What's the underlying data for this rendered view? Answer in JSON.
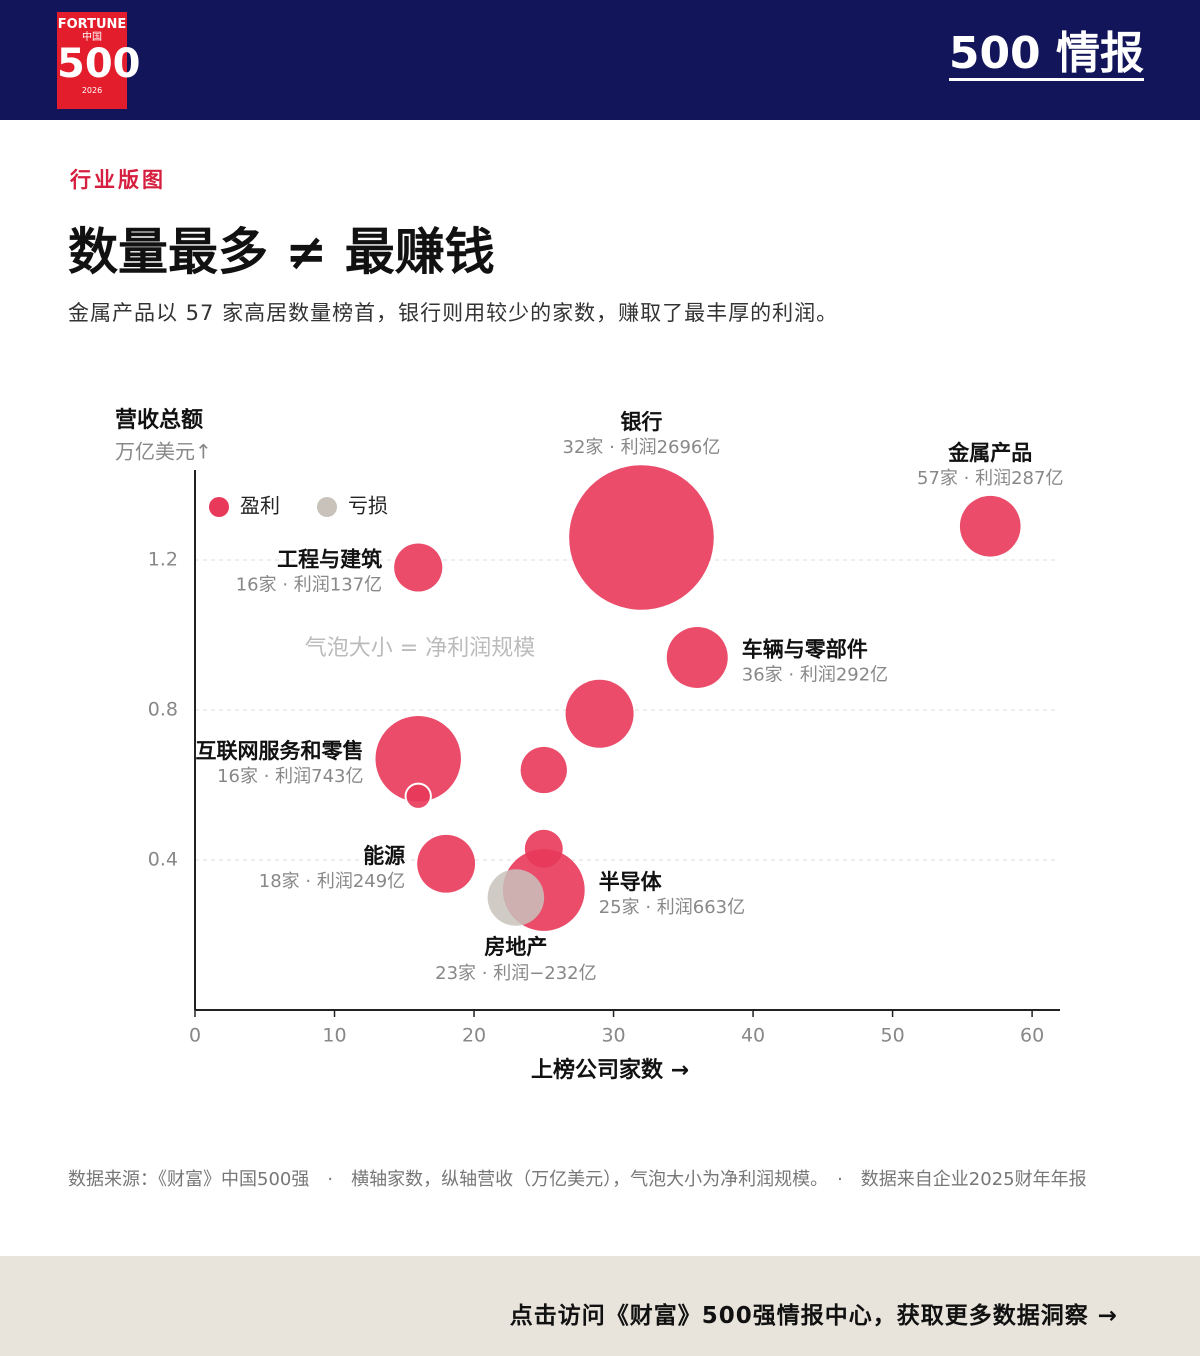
{
  "header": {
    "logo": {
      "brand": "FORTUNE",
      "region": "中国",
      "number": "500",
      "year": "2026"
    },
    "right_title": "500 情报"
  },
  "section_label": "行业版图",
  "title": "数量最多 ≠ 最赚钱",
  "subtitle": "金属产品以 57 家高居数量榜首，银行则用较少的家数，赚取了最丰厚的利润。",
  "chart_data": {
    "type": "bubble",
    "y_axis_title": "营收总额",
    "y_axis_unit": "万亿美元↑",
    "x_axis_title": "上榜公司家数 →",
    "annotation": "气泡大小 = 净利润规模",
    "xlim": [
      0,
      62
    ],
    "ylim": [
      0,
      1.44
    ],
    "xticks": [
      0,
      10,
      20,
      30,
      40,
      50,
      60
    ],
    "yticks": [
      0.4,
      0.8,
      1.2
    ],
    "grid": true,
    "legend": "top-left",
    "series": [
      {
        "name": "盈利",
        "color": "#e8395a",
        "x": [
          32,
          57,
          16,
          36,
          16,
          29,
          25,
          18,
          25,
          25,
          16
        ],
        "values": [
          1.26,
          1.29,
          1.18,
          0.94,
          0.67,
          0.79,
          0.64,
          0.39,
          0.32,
          0.43,
          0.57
        ],
        "size": [
          2696,
          287,
          137,
          292,
          743,
          400,
          120,
          249,
          663,
          56,
          5
        ],
        "labels": [
          "银行",
          "金属产品",
          "工程与建筑",
          "车辆与零部件",
          "互联网服务和零售",
          null,
          null,
          "能源",
          "半导体",
          null,
          null
        ],
        "value_labels": [
          "32家 · 利润2696亿",
          "57家 · 利润287亿",
          "16家 · 利润137亿",
          "36家 · 利润292亿",
          "16家 · 利润743亿",
          null,
          null,
          "18家 · 利润249亿",
          "25家 · 利润663亿",
          null,
          null
        ]
      },
      {
        "name": "亏损",
        "color": "#c8c2bb",
        "x": [
          23
        ],
        "values": [
          0.3
        ],
        "size": [
          -232
        ],
        "labels": [
          "房地产"
        ],
        "value_labels": [
          "23家 · 利润−232亿"
        ]
      }
    ]
  },
  "source": "数据来源：《财富》中国500强　·　横轴家数，纵轴营收（万亿美元），气泡大小为净利润规模。　·　数据来自企业2025财年年报",
  "cta": "点击访问《财富》500强情报中心，获取更多数据洞察 →"
}
